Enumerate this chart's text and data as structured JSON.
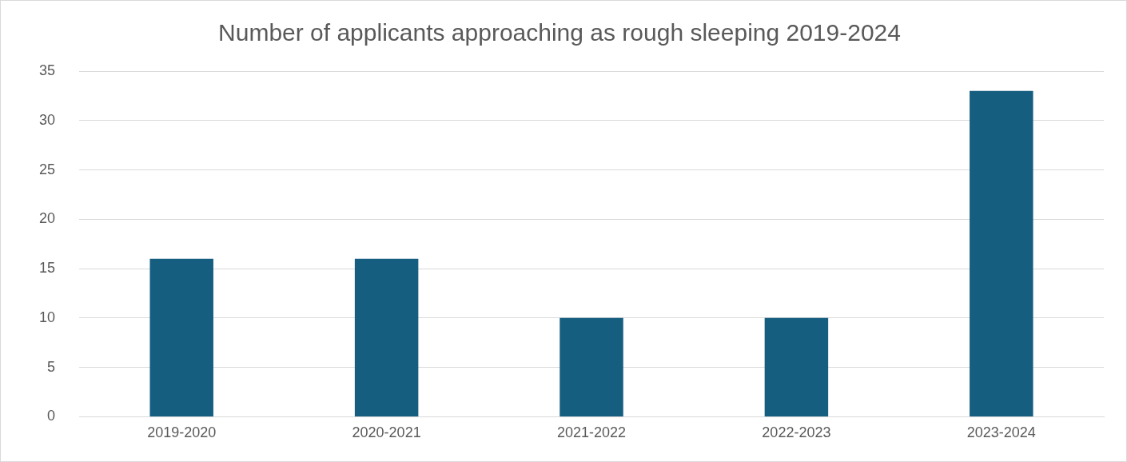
{
  "chart_data": {
    "type": "bar",
    "title": "Number of applicants approaching as rough sleeping 2019-2024",
    "categories": [
      "2019-2020",
      "2020-2021",
      "2021-2022",
      "2022-2023",
      "2023-2024"
    ],
    "values": [
      16,
      16,
      10,
      10,
      33
    ],
    "color": "#165e80",
    "ylim": [
      0,
      35
    ],
    "yticks": [
      0,
      5,
      10,
      15,
      20,
      25,
      30,
      35
    ],
    "grid": "y"
  }
}
